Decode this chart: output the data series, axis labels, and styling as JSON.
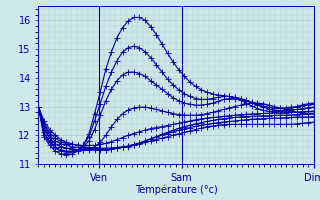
{
  "xlabel": "Température (°c)",
  "bg_color": "#cce8e8",
  "plot_bg_color": "#cce8e8",
  "grid_color": "#aacccc",
  "line_color": "#0000aa",
  "marker": "+",
  "markersize": 4,
  "linewidth": 0.8,
  "ylim": [
    11.0,
    16.5
  ],
  "yticks": [
    11,
    12,
    13,
    14,
    15,
    16
  ],
  "xlabel_fontsize": 7,
  "ylabel_fontsize": 7,
  "tick_fontsize": 7,
  "xtick_positions": [
    0.22,
    0.52,
    1.0
  ],
  "xtick_labels": [
    "Ven",
    "Sam",
    "Dim"
  ],
  "vline_positions": [
    0.22,
    0.52,
    1.0
  ],
  "n_points": 50,
  "series": [
    [
      13.0,
      12.5,
      12.2,
      12.0,
      11.85,
      11.75,
      11.7,
      11.65,
      11.6,
      11.58,
      11.55,
      11.52,
      11.5,
      11.52,
      11.55,
      11.58,
      11.6,
      11.65,
      11.7,
      11.75,
      11.8,
      11.85,
      11.9,
      11.95,
      12.0,
      12.05,
      12.1,
      12.15,
      12.2,
      12.25,
      12.3,
      12.32,
      12.35,
      12.37,
      12.38,
      12.38,
      12.38,
      12.38,
      12.38,
      12.38,
      12.38,
      12.38,
      12.38,
      12.38,
      12.38,
      12.38,
      12.4,
      12.42,
      12.44,
      12.46
    ],
    [
      13.0,
      12.4,
      12.0,
      11.8,
      11.7,
      11.65,
      11.6,
      11.58,
      11.56,
      11.55,
      11.55,
      11.55,
      11.55,
      11.56,
      11.58,
      11.6,
      11.63,
      11.68,
      11.73,
      11.8,
      11.87,
      11.94,
      12.0,
      12.06,
      12.12,
      12.17,
      12.22,
      12.27,
      12.31,
      12.35,
      12.38,
      12.41,
      12.44,
      12.46,
      12.48,
      12.5,
      12.52,
      12.54,
      12.56,
      12.57,
      12.58,
      12.59,
      12.6,
      12.6,
      12.61,
      12.62,
      12.63,
      12.64,
      12.64,
      12.65
    ],
    [
      13.0,
      12.3,
      11.9,
      11.7,
      11.6,
      11.55,
      11.52,
      11.5,
      11.5,
      11.5,
      11.5,
      11.5,
      11.5,
      11.52,
      11.54,
      11.58,
      11.62,
      11.67,
      11.73,
      11.8,
      11.88,
      11.95,
      12.03,
      12.1,
      12.17,
      12.24,
      12.3,
      12.35,
      12.4,
      12.44,
      12.48,
      12.52,
      12.55,
      12.58,
      12.6,
      12.62,
      12.64,
      12.65,
      12.66,
      12.67,
      12.68,
      12.68,
      12.69,
      12.7,
      12.7,
      12.71,
      12.72,
      12.73,
      12.74,
      12.75
    ],
    [
      13.0,
      12.4,
      12.1,
      11.9,
      11.78,
      11.7,
      11.68,
      11.66,
      11.65,
      11.65,
      11.65,
      11.68,
      11.72,
      11.78,
      11.85,
      11.92,
      12.0,
      12.06,
      12.12,
      12.18,
      12.23,
      12.27,
      12.3,
      12.34,
      12.38,
      12.42,
      12.46,
      12.5,
      12.54,
      12.57,
      12.6,
      12.62,
      12.64,
      12.66,
      12.68,
      12.7,
      12.72,
      12.73,
      12.74,
      12.75,
      12.76,
      12.77,
      12.78,
      12.78,
      12.79,
      12.8,
      12.81,
      12.82,
      12.83,
      12.84
    ],
    [
      13.0,
      12.2,
      11.9,
      11.7,
      11.6,
      11.55,
      11.52,
      11.5,
      11.5,
      11.52,
      11.6,
      11.75,
      12.0,
      12.3,
      12.55,
      12.75,
      12.88,
      12.95,
      12.98,
      12.98,
      12.95,
      12.9,
      12.85,
      12.8,
      12.75,
      12.72,
      12.7,
      12.7,
      12.7,
      12.72,
      12.75,
      12.8,
      12.85,
      12.9,
      12.95,
      13.0,
      13.05,
      13.1,
      13.12,
      13.12,
      13.1,
      13.05,
      13.0,
      12.95,
      12.9,
      12.85,
      12.8,
      12.78,
      12.77,
      12.77
    ],
    [
      13.0,
      12.1,
      11.8,
      11.6,
      11.5,
      11.45,
      11.45,
      11.5,
      11.6,
      11.8,
      12.2,
      12.7,
      13.2,
      13.6,
      13.9,
      14.1,
      14.2,
      14.2,
      14.15,
      14.05,
      13.9,
      13.75,
      13.6,
      13.45,
      13.3,
      13.2,
      13.12,
      13.08,
      13.05,
      13.05,
      13.08,
      13.12,
      13.18,
      13.25,
      13.28,
      13.28,
      13.25,
      13.2,
      13.12,
      13.05,
      12.98,
      12.92,
      12.88,
      12.86,
      12.86,
      12.88,
      12.9,
      12.93,
      12.96,
      12.98
    ],
    [
      13.0,
      12.0,
      11.75,
      11.55,
      11.45,
      11.4,
      11.42,
      11.5,
      11.65,
      11.95,
      12.5,
      13.1,
      13.7,
      14.2,
      14.6,
      14.9,
      15.05,
      15.1,
      15.05,
      14.9,
      14.7,
      14.45,
      14.2,
      13.95,
      13.75,
      13.58,
      13.45,
      13.35,
      13.28,
      13.25,
      13.25,
      13.28,
      13.32,
      13.35,
      13.35,
      13.32,
      13.28,
      13.22,
      13.15,
      13.08,
      13.02,
      12.98,
      12.95,
      12.95,
      12.96,
      12.98,
      13.0,
      13.03,
      13.06,
      13.08
    ],
    [
      13.0,
      11.95,
      11.65,
      11.45,
      11.35,
      11.32,
      11.35,
      11.45,
      11.65,
      12.05,
      12.75,
      13.5,
      14.3,
      14.9,
      15.4,
      15.75,
      15.98,
      16.1,
      16.1,
      16.0,
      15.78,
      15.5,
      15.18,
      14.85,
      14.55,
      14.28,
      14.05,
      13.85,
      13.7,
      13.58,
      13.5,
      13.44,
      13.4,
      13.38,
      13.35,
      13.3,
      13.22,
      13.12,
      13.02,
      12.93,
      12.87,
      12.83,
      12.82,
      12.83,
      12.87,
      12.93,
      12.99,
      13.06,
      13.1,
      13.12
    ]
  ]
}
